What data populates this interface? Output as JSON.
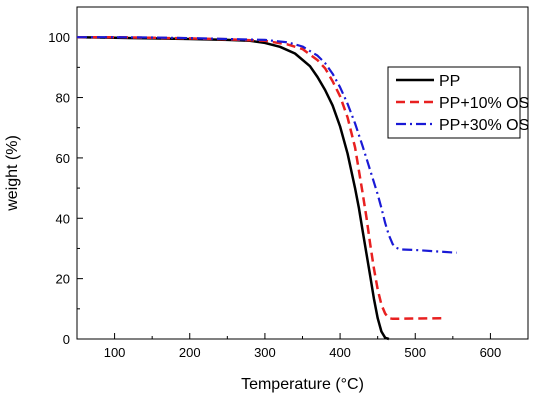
{
  "chart_data": {
    "type": "line",
    "xlabel": "Temperature (°C)",
    "ylabel": "weight (%)",
    "xlim": [
      50,
      650
    ],
    "ylim": [
      0,
      110
    ],
    "x_ticks": [
      100,
      200,
      300,
      400,
      500,
      600
    ],
    "y_ticks": [
      0,
      20,
      40,
      60,
      80,
      100
    ],
    "grid": false,
    "legend_position": "top-right",
    "series": [
      {
        "name": "PP",
        "color": "#000000",
        "dash": "solid",
        "x": [
          50,
          100,
          150,
          200,
          250,
          280,
          300,
          320,
          340,
          360,
          370,
          380,
          390,
          400,
          410,
          420,
          425,
          430,
          435,
          440,
          445,
          450,
          455,
          460,
          465
        ],
        "y": [
          100,
          99.8,
          99.6,
          99.4,
          99.1,
          98.8,
          98.1,
          96.8,
          94.6,
          90.4,
          86.8,
          82.5,
          77.4,
          70.4,
          61.4,
          49.9,
          43.4,
          35.9,
          28.4,
          20.9,
          13.4,
          6.9,
          2.5,
          0.4,
          0
        ]
      },
      {
        "name": "PP+10% OS",
        "color": "#e82020",
        "dash": "dashed",
        "x": [
          50,
          100,
          150,
          200,
          250,
          300,
          330,
          350,
          370,
          380,
          390,
          400,
          410,
          420,
          430,
          435,
          440,
          445,
          450,
          455,
          460,
          465,
          470,
          500,
          540
        ],
        "y": [
          100,
          100,
          99.8,
          99.6,
          99.3,
          98.8,
          97.6,
          96.1,
          92.4,
          89.7,
          85.4,
          80.4,
          73.4,
          63.4,
          48.4,
          40.4,
          31.4,
          23.4,
          16.4,
          11.4,
          8.4,
          6.9,
          6.7,
          6.8,
          6.9
        ]
      },
      {
        "name": "PP+30% OS",
        "color": "#1a1ad6",
        "dash": "dashdot",
        "x": [
          50,
          100,
          150,
          200,
          250,
          300,
          330,
          350,
          370,
          380,
          390,
          400,
          410,
          420,
          430,
          440,
          450,
          455,
          460,
          465,
          470,
          475,
          480,
          500,
          530,
          555
        ],
        "y": [
          100,
          100,
          99.9,
          99.7,
          99.4,
          99.1,
          98.3,
          96.9,
          93.9,
          91.4,
          87.9,
          83.4,
          77.9,
          71.4,
          63.9,
          55.9,
          47.9,
          43.4,
          38.4,
          34.4,
          31.4,
          30.2,
          29.7,
          29.5,
          29.0,
          28.6
        ]
      }
    ]
  }
}
